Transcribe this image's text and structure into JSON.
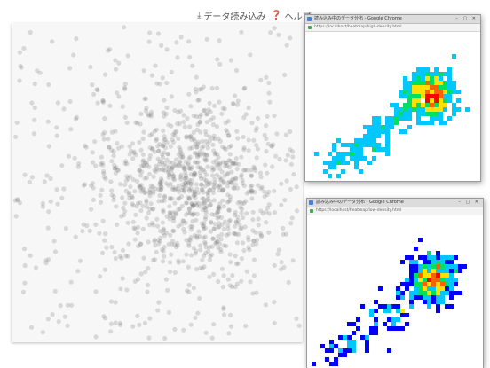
{
  "toolbar": {
    "load_label": "データ読み込み",
    "load_icon": "download-icon",
    "help_label": "ヘルプ",
    "help_icon": "help-circle-icon"
  },
  "windows": [
    {
      "title": "読み込み中のデータ分布 - Google Chrome",
      "url": "https://localhost/heatmap/high-density.html",
      "controls": "– ▢ ✕"
    },
    {
      "title": "読み込み中のデータ分布 - Google Chrome",
      "url": "https://localhost/heatmap/low-density.html",
      "controls": "– ▢ ✕"
    }
  ],
  "chart_data": [
    {
      "type": "scatter",
      "title": "",
      "point_count": 1200,
      "cluster_center": [
        0.62,
        0.5
      ],
      "color": "#6f6f6f"
    },
    {
      "type": "heatmap",
      "title": "",
      "colormap": [
        "#0000ff",
        "#00c8ff",
        "#00e060",
        "#ffe000",
        "#ff6000",
        "#ff0000"
      ],
      "cluster_center": [
        0.72,
        0.42
      ]
    },
    {
      "type": "heatmap",
      "title": "",
      "colormap": [
        "#0000ff",
        "#00c8ff",
        "#00e060",
        "#ffe000",
        "#ff6000",
        "#ff0000"
      ],
      "cluster_center": [
        0.72,
        0.42
      ]
    }
  ]
}
